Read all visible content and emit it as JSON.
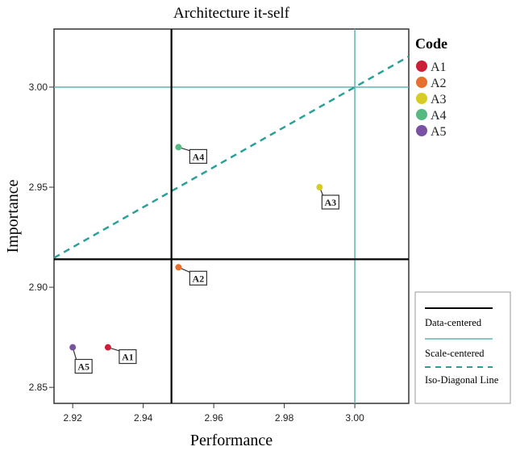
{
  "chart_data": {
    "type": "scatter",
    "title": "Architecture it-self",
    "xlabel": "Performance",
    "ylabel": "Importance",
    "xlim": [
      2.9147,
      3.0153
    ],
    "ylim": [
      2.842,
      3.029
    ],
    "xticks": [
      2.92,
      2.94,
      2.96,
      2.98,
      3.0
    ],
    "xtick_labels": [
      "2.92",
      "2.94",
      "2.96",
      "2.98",
      "3.00"
    ],
    "yticks": [
      2.85,
      2.9,
      2.95,
      3.0
    ],
    "ytick_labels": [
      "2.85",
      "2.90",
      "2.95",
      "3.00"
    ],
    "grid": false,
    "legend_title": "Code",
    "legend_placement": "right",
    "points": [
      {
        "label": "A1",
        "x": 2.93,
        "y": 2.87,
        "color": "#cc1f36"
      },
      {
        "label": "A2",
        "x": 2.95,
        "y": 2.91,
        "color": "#e8702e"
      },
      {
        "label": "A3",
        "x": 2.99,
        "y": 2.95,
        "color": "#d6cc22"
      },
      {
        "label": "A4",
        "x": 2.95,
        "y": 2.97,
        "color": "#55b981"
      },
      {
        "label": "A5",
        "x": 2.92,
        "y": 2.87,
        "color": "#7a52a3"
      }
    ],
    "reference_lines": {
      "data_centered": {
        "label": "Data-centered",
        "x": 2.948,
        "y": 2.914,
        "color": "#000000"
      },
      "scale_centered": {
        "label": "Scale-centered",
        "x": 3.0,
        "y": 3.0,
        "color": "#5fb5b5"
      },
      "iso_diagonal": {
        "label": "Iso-Diagonal Line",
        "slope": 1,
        "intercept": 0,
        "color": "#2aa198"
      }
    }
  }
}
